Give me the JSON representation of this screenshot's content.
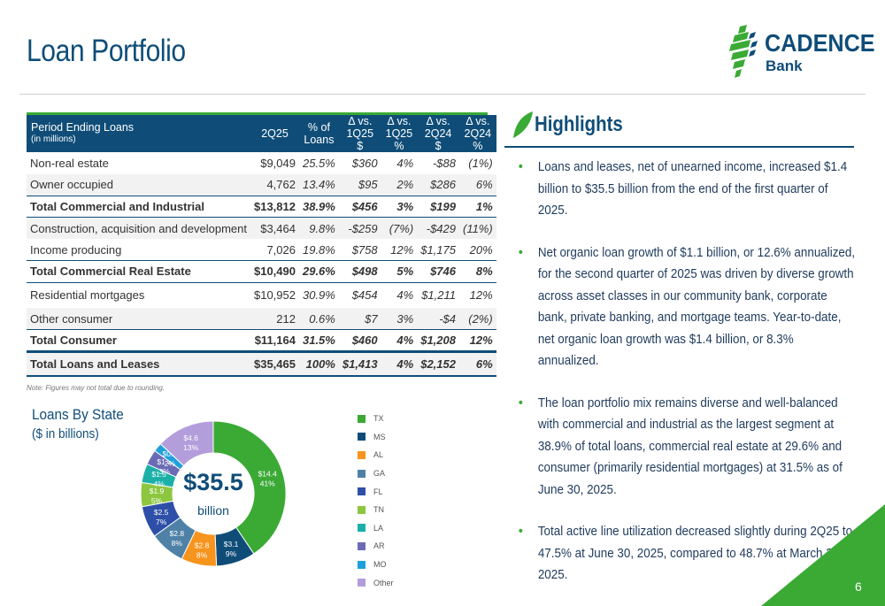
{
  "title": "Loan Portfolio",
  "logo": {
    "name": "CADENCE",
    "sub": "Bank"
  },
  "table": {
    "header": {
      "c0": "Period Ending Loans",
      "c0_sub": "(in millions)",
      "c1": "2Q25",
      "c2a": "% of",
      "c2b": "Loans",
      "c3a": "Δ vs.",
      "c3b": "1Q25 $",
      "c4a": "Δ vs.",
      "c4b": "1Q25 %",
      "c5a": "Δ vs.",
      "c5b": "2Q24 $",
      "c6a": "Δ vs.",
      "c6b": "2Q24 %"
    },
    "rows": [
      [
        "Non-real estate",
        "$9,049",
        "25.5%",
        "$360",
        "4%",
        "-$88",
        "(1%)"
      ],
      [
        "Owner occupied",
        "4,762",
        "13.4%",
        "$95",
        "2%",
        "$286",
        "6%"
      ],
      [
        "Total Commercial and Industrial",
        "$13,812",
        "38.9%",
        "$456",
        "3%",
        "$199",
        "1%"
      ],
      [
        "Construction, acquisition and development",
        "$3,464",
        "9.8%",
        "-$259",
        "(7%)",
        "-$429",
        "(11%)"
      ],
      [
        "Income producing",
        "7,026",
        "19.8%",
        "$758",
        "12%",
        "$1,175",
        "20%"
      ],
      [
        "Total Commercial Real Estate",
        "$10,490",
        "29.6%",
        "$498",
        "5%",
        "$746",
        "8%"
      ],
      [
        "Residential mortgages",
        "$10,952",
        "30.9%",
        "$454",
        "4%",
        "$1,211",
        "12%"
      ],
      [
        "Other consumer",
        "212",
        "0.6%",
        "$7",
        "3%",
        "-$4",
        "(2%)"
      ],
      [
        "Total Consumer",
        "$11,164",
        "31.5%",
        "$460",
        "4%",
        "$1,208",
        "12%"
      ],
      [
        "Total Loans and Leases",
        "$35,465",
        "100%",
        "$1,413",
        "4%",
        "$2,152",
        "6%"
      ]
    ],
    "note": "Note: Figures may not total due to rounding."
  },
  "chart": {
    "title": "Loans By State",
    "subtitle": "($ in billions)",
    "center_value": "$35.5",
    "center_unit": "billion"
  },
  "chart_data": {
    "type": "pie",
    "title": "Loans By State",
    "categories": [
      "TX",
      "MS",
      "AL",
      "GA",
      "FL",
      "TN",
      "LA",
      "AR",
      "MO",
      "Other"
    ],
    "values": [
      14.4,
      3.1,
      2.8,
      2.8,
      2.5,
      1.9,
      1.5,
      1.2,
      0.7,
      4.6
    ],
    "value_labels": [
      "$14.4",
      "$3.1",
      "$2.8",
      "$2.8",
      "$2.5",
      "$1.9",
      "$1.5",
      "$1.2",
      "$0.7",
      "$4.6"
    ],
    "percent_labels": [
      "41%",
      "9%",
      "8%",
      "8%",
      "7%",
      "5%",
      "4%",
      "3%",
      "2%",
      "13%"
    ],
    "colors": [
      "#3aaa35",
      "#0f4d78",
      "#f7941d",
      "#4f81a6",
      "#2e4fa8",
      "#8dc63f",
      "#1ab0a8",
      "#6b6bb5",
      "#1fa0dc",
      "#b39ddb"
    ],
    "legend_position": "right"
  },
  "highlights": {
    "title": "Highlights",
    "bullets": [
      "Loans and leases, net of unearned income, increased $1.4 billion to $35.5 billion from the end of the first quarter of 2025.",
      "Net organic loan growth of $1.1 billion, or 12.6% annualized, for the second quarter of 2025 was driven by diverse growth across asset classes in our community bank, corporate bank, private banking, and mortgage teams.  Year-to-date, net organic loan growth was $1.4 billion, or 8.3% annualized.",
      "The loan portfolio mix remains diverse and well-balanced with commercial and industrial as the largest segment at 38.9% of total loans, commercial real estate at 29.6% and consumer (primarily residential mortgages) at 31.5% as of June 30, 2025.",
      "Total active line utilization decreased slightly during 2Q25 to 47.5% at June 30, 2025, compared to 48.7% at March 31, 2025."
    ]
  },
  "page_number": "6"
}
